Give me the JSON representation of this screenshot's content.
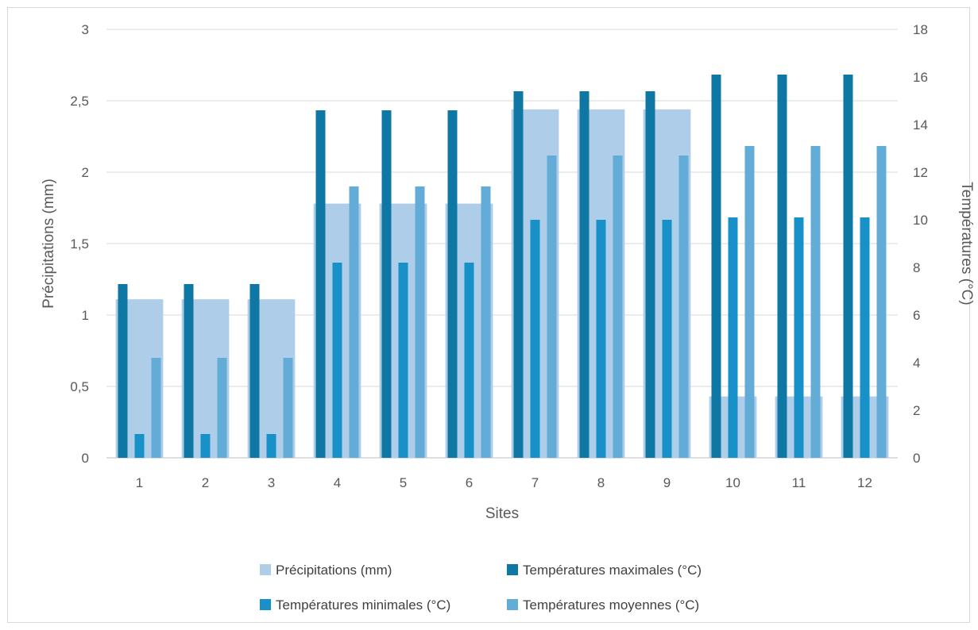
{
  "chart_data": {
    "type": "bar",
    "title": "",
    "xlabel": "Sites",
    "ylabel": "Précipitations (mm)",
    "y2label": "Températures (°C)",
    "categories": [
      "1",
      "2",
      "3",
      "4",
      "5",
      "6",
      "7",
      "8",
      "9",
      "10",
      "11",
      "12"
    ],
    "ylim": [
      0,
      3
    ],
    "y2lim": [
      0,
      18
    ],
    "yticks": [
      "0",
      "0,5",
      "1",
      "1,5",
      "2",
      "2,5",
      "3"
    ],
    "y2ticks": [
      "0",
      "2",
      "4",
      "6",
      "8",
      "10",
      "12",
      "14",
      "16",
      "18"
    ],
    "grid": true,
    "legend_position": "bottom",
    "series": [
      {
        "name": "Précipitations (mm)",
        "axis": "left",
        "color": "#aecde8",
        "values": [
          1.11,
          1.11,
          1.11,
          1.78,
          1.78,
          1.78,
          2.44,
          2.44,
          2.44,
          0.43,
          0.43,
          0.43
        ]
      },
      {
        "name": "Températures maximales (°C)",
        "axis": "right",
        "color": "#0e77a3",
        "values": [
          7.3,
          7.3,
          7.3,
          14.6,
          14.6,
          14.6,
          15.4,
          15.4,
          15.4,
          16.1,
          16.1,
          16.1
        ]
      },
      {
        "name": "Températures minimales (°C)",
        "axis": "right",
        "color": "#1791c8",
        "values": [
          1.0,
          1.0,
          1.0,
          8.2,
          8.2,
          8.2,
          10.0,
          10.0,
          10.0,
          10.1,
          10.1,
          10.1
        ]
      },
      {
        "name": "Températures moyennes (°C)",
        "axis": "right",
        "color": "#63acd8",
        "values": [
          4.2,
          4.2,
          4.2,
          11.4,
          11.4,
          11.4,
          12.7,
          12.7,
          12.7,
          13.1,
          13.1,
          13.1
        ]
      }
    ]
  }
}
